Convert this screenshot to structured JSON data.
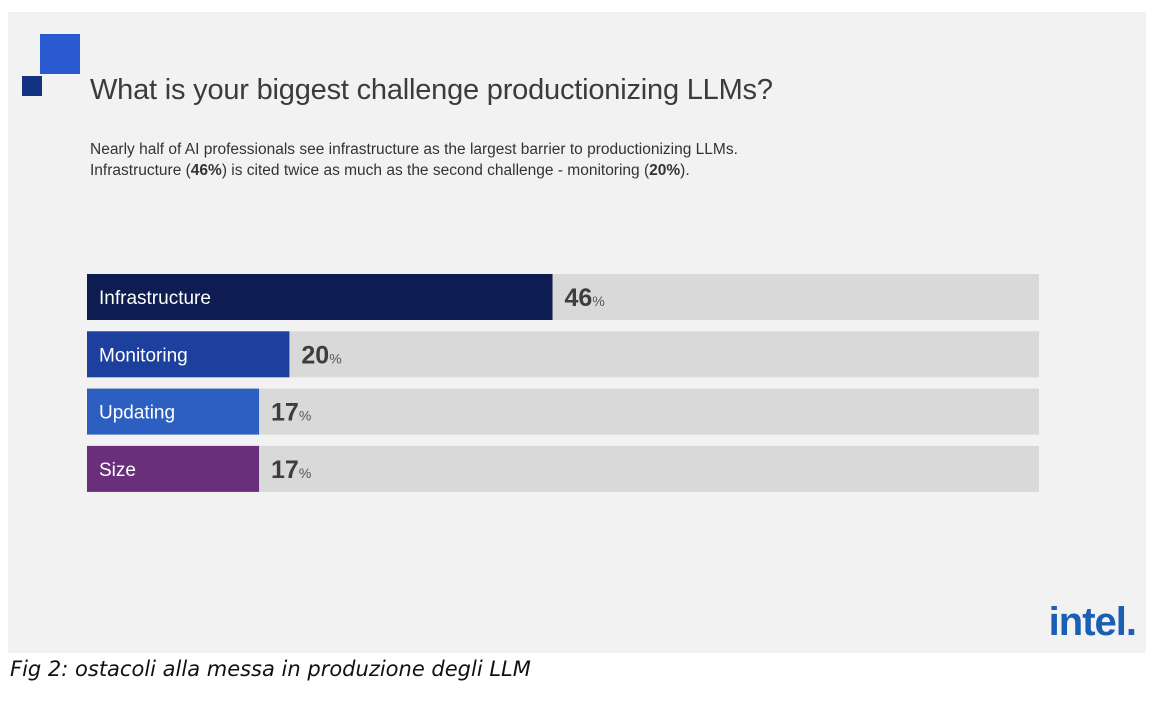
{
  "header": {
    "title": "What is your biggest challenge productionizing LLMs?",
    "subtitle_line1": "Nearly half of AI professionals see infrastructure as the largest barrier to productionizing LLMs.",
    "subtitle_line2_pre": "Infrastructure (",
    "subtitle_line2_b1": "46%",
    "subtitle_line2_mid": ") is cited twice as much as the second challenge - monitoring (",
    "subtitle_line2_b2": "20%",
    "subtitle_line2_post": ")."
  },
  "chart_data": {
    "type": "bar",
    "orientation": "horizontal",
    "title": "What is your biggest challenge productionizing LLMs?",
    "categories": [
      "Infrastructure",
      "Monitoring",
      "Updating",
      "Size"
    ],
    "values": [
      46,
      20,
      17,
      17
    ],
    "unit": "%",
    "xlim": [
      0,
      100
    ],
    "grid": false,
    "colors": [
      "#0d1d52",
      "#1d3f9e",
      "#2c5fbf",
      "#6a2f7a"
    ],
    "track_color": "#d9d9d9"
  },
  "brand": {
    "logo_text": "intel."
  },
  "caption": "Fig 2:  ostacoli alla messa in produzione degli LLM"
}
